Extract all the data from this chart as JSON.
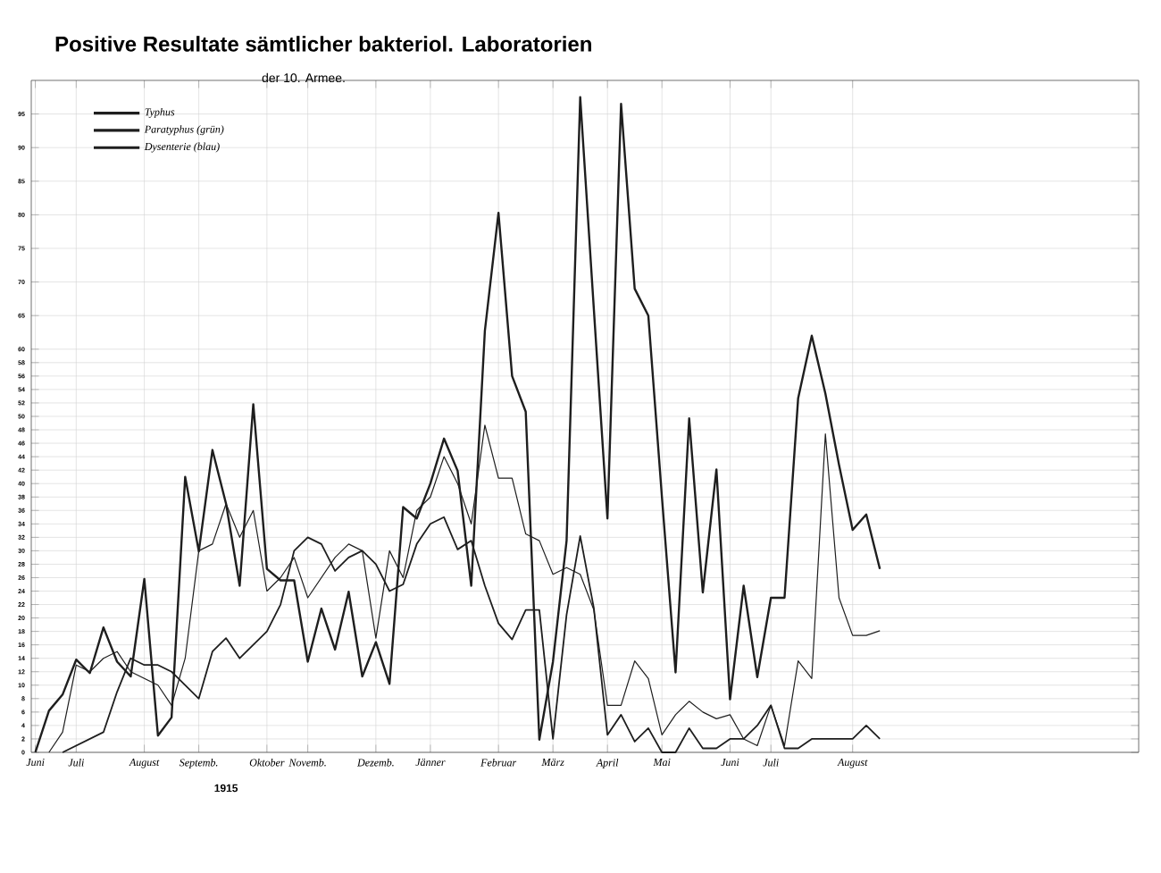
{
  "chart_data": {
    "type": "line",
    "title": "Positive Resultate sämtlicher bakteriol. Laboratorien",
    "subtitle": "der 10. Armee.",
    "categories": [
      "Juni",
      null,
      null,
      "Juli",
      null,
      null,
      null,
      null,
      "August",
      null,
      null,
      null,
      "Septemb.",
      null,
      null,
      null,
      null,
      "Oktober",
      null,
      null,
      "Novemb.",
      null,
      null,
      null,
      null,
      "Dezemb.",
      null,
      null,
      null,
      "Jänner",
      null,
      null,
      null,
      null,
      "Februar",
      null,
      null,
      null,
      "März",
      null,
      null,
      null,
      "April",
      null,
      null,
      null,
      "Mai",
      null,
      null,
      null,
      null,
      "Juni",
      null,
      null,
      "Juli",
      null,
      null,
      null,
      null,
      null,
      "August",
      null,
      null
    ],
    "series": [
      {
        "name": "Typhus",
        "color": "#1e1e1e",
        "values": [
          null,
          0,
          3,
          13,
          12,
          14,
          15,
          12,
          11,
          10,
          7,
          14,
          30,
          31,
          37,
          32,
          36,
          24,
          26,
          29,
          23,
          26,
          29,
          31,
          30,
          17,
          30,
          26,
          36,
          38,
          44,
          40,
          34,
          48.7,
          40.8,
          40.8,
          32.5,
          31.5,
          26.5,
          27.5,
          26.5,
          21.2,
          7,
          7,
          13.6,
          11,
          2.6,
          5.6,
          7.6,
          6,
          5,
          5.6,
          2,
          1,
          7,
          1,
          13.6,
          11,
          47.4,
          23,
          17.4,
          17.4,
          18.1
        ]
      },
      {
        "name": "Paratyphus (grün)",
        "color": "#1e1e1e",
        "values": [
          null,
          null,
          0,
          1,
          2,
          3,
          9,
          14,
          13,
          13,
          12,
          10,
          8,
          15,
          17,
          14,
          16,
          18,
          22,
          30,
          32,
          31,
          27,
          29,
          30,
          28,
          24,
          25,
          31,
          34,
          35,
          30.2,
          31.5,
          24.8,
          19.2,
          16.8,
          21.2,
          21.2,
          2,
          20.5,
          32.2,
          21.5,
          2.6,
          5.6,
          1.6,
          3.6,
          0,
          0,
          3.6,
          0.6,
          0.6,
          2,
          2,
          4,
          7,
          0.6,
          0.6,
          2,
          2,
          2,
          2,
          4,
          2
        ]
      },
      {
        "name": "Dysenterie (blau)",
        "color": "#1e1e1e",
        "values": [
          0,
          6.2,
          8.6,
          13.8,
          11.8,
          18.6,
          13.5,
          11.3,
          25.8,
          2.5,
          5.2,
          41,
          29.9,
          45,
          37,
          24.8,
          51.8,
          27.3,
          25.6,
          25.6,
          13.5,
          21.4,
          15.3,
          23.9,
          11.3,
          16.4,
          10.2,
          36.5,
          34.8,
          40,
          46.7,
          41.9,
          24.8,
          62.7,
          80.3,
          56,
          50.7,
          1.9,
          13.5,
          31.5,
          97.5,
          66,
          34.8,
          96.5,
          69,
          65,
          38,
          11.9,
          49.7,
          23.8,
          42.1,
          7.9,
          24.8,
          11.2,
          23,
          23,
          52.7,
          62,
          53.4,
          42.8,
          33.1,
          35.4,
          27.3
        ]
      }
    ],
    "ylim": [
      0,
      100
    ],
    "yticks": [
      0,
      2,
      4,
      6,
      8,
      10,
      12,
      14,
      16,
      18,
      20,
      22,
      24,
      26,
      28,
      30,
      32,
      34,
      36,
      38,
      40,
      42,
      44,
      46,
      48,
      50,
      52,
      54,
      56,
      58,
      60,
      65,
      70,
      75,
      80,
      85,
      90,
      95
    ],
    "grid": true,
    "legend": "top left",
    "annotations": [
      "1915"
    ]
  }
}
